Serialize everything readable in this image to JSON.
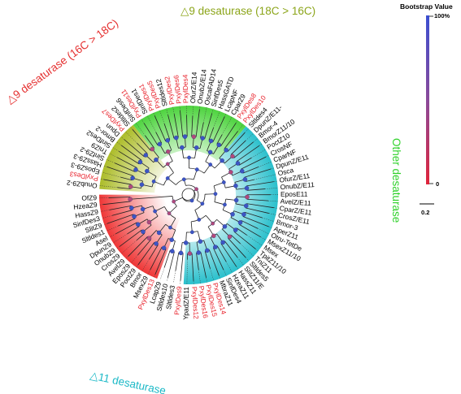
{
  "legend": {
    "title": "Bootstrap Value",
    "max_label": "100%",
    "min_label": "0",
    "color_high": "#3b4fd1",
    "color_low": "#e0243a"
  },
  "scale_bar": {
    "label": "0.2"
  },
  "clades": {
    "d9_16_18": {
      "label": "△9 desaturase (16C > 18C)",
      "color": "#e53030"
    },
    "d9_18_16": {
      "label": "△9 desaturase (18C > 16C)",
      "color": "#8ca51a"
    },
    "other": {
      "label": "Other desaturase",
      "color": "#2fd12a"
    },
    "d11": {
      "label": "△11 desaturase",
      "color": "#1cb9c7"
    }
  },
  "colors": {
    "highlight_text": "#e8202a",
    "normal_text": "#000000"
  },
  "leaves": [
    {
      "name": "OnubZ9-2",
      "clade": "d9_18_16",
      "highlight": false
    },
    {
      "name": "PxylDes3",
      "clade": "d9_18_16",
      "highlight": true
    },
    {
      "name": "EposZ9-3",
      "clade": "d9_18_16",
      "highlight": false
    },
    {
      "name": "HassZ9-3",
      "clade": "d9_18_16",
      "highlight": false
    },
    {
      "name": "SinfZ9-2",
      "clade": "d9_18_16",
      "highlight": false
    },
    {
      "name": "TniZ9",
      "clade": "d9_18_16",
      "highlight": false
    },
    {
      "name": "SinfDes2",
      "clade": "d9_18_16",
      "highlight": false
    },
    {
      "name": "Bmor-2",
      "clade": "d9_18_16",
      "highlight": false
    },
    {
      "name": "Dpun",
      "clade": "d9_18_16",
      "highlight": false
    },
    {
      "name": "PxylDes7",
      "clade": "d9_18_16",
      "highlight": true
    },
    {
      "name": "Sltldes2",
      "clade": "d9_18_16",
      "highlight": false
    },
    {
      "name": "SinfDes6",
      "clade": "other",
      "highlight": false
    },
    {
      "name": "PxylDes11",
      "clade": "other",
      "highlight": true
    },
    {
      "name": "SinfDes1",
      "clade": "other",
      "highlight": false
    },
    {
      "name": "PxylDes1",
      "clade": "other",
      "highlight": true
    },
    {
      "name": "PxylDes5",
      "clade": "other",
      "highlight": true
    },
    {
      "name": "Sltldes12",
      "clade": "other",
      "highlight": false
    },
    {
      "name": "PxylDes2",
      "clade": "other",
      "highlight": true
    },
    {
      "name": "PxylDes6",
      "clade": "other",
      "highlight": true
    },
    {
      "name": "PxylDes4",
      "clade": "other",
      "highlight": true
    },
    {
      "name": "OfurZ/E14",
      "clade": "other",
      "highlight": false
    },
    {
      "name": "OnubZ/E14",
      "clade": "other",
      "highlight": false
    },
    {
      "name": "OscaFAD14",
      "clade": "other",
      "highlight": false
    },
    {
      "name": "SinfDes5",
      "clade": "other",
      "highlight": false
    },
    {
      "name": "HassGATD",
      "clade": "other",
      "highlight": false
    },
    {
      "name": "LcapNF",
      "clade": "other",
      "highlight": false
    },
    {
      "name": "CparZ9",
      "clade": "other",
      "highlight": false
    },
    {
      "name": "PxylDes8",
      "clade": "other",
      "highlight": true
    },
    {
      "name": "PxylDes10",
      "clade": "other",
      "highlight": true
    },
    {
      "name": "Sltldes4",
      "clade": "d11",
      "highlight": false
    },
    {
      "name": "DpunZ/E11-",
      "clade": "d11",
      "highlight": false
    },
    {
      "name": "Bmor-4",
      "clade": "d11",
      "highlight": false
    },
    {
      "name": "BmorZ11/10",
      "clade": "d11",
      "highlight": false
    },
    {
      "name": "PoctZ10",
      "clade": "d11",
      "highlight": false
    },
    {
      "name": "CrosNF",
      "clade": "d11",
      "highlight": false
    },
    {
      "name": "CparNF",
      "clade": "d11",
      "highlight": false
    },
    {
      "name": "DpunZ/E11",
      "clade": "d11",
      "highlight": false
    },
    {
      "name": "Osca",
      "clade": "d11",
      "highlight": false
    },
    {
      "name": "OfurZ/E11",
      "clade": "d11",
      "highlight": false
    },
    {
      "name": "OnubZ/E11",
      "clade": "d11",
      "highlight": false
    },
    {
      "name": "EposE11",
      "clade": "d11",
      "highlight": false
    },
    {
      "name": "AvelZ/E11",
      "clade": "d11",
      "highlight": false
    },
    {
      "name": "CparZ/E11",
      "clade": "d11",
      "highlight": false
    },
    {
      "name": "CrosZ/E11",
      "clade": "d11",
      "highlight": false
    },
    {
      "name": "Bmor-3",
      "clade": "d11",
      "highlight": false
    },
    {
      "name": "AperZ11",
      "clade": "d11",
      "highlight": false
    },
    {
      "name": "Otru-TetDe",
      "clade": "d11",
      "highlight": false
    },
    {
      "name": "MsexZ11/10",
      "clade": "d11",
      "highlight": false
    },
    {
      "name": "Msex",
      "clade": "d11",
      "highlight": false
    },
    {
      "name": "TpitZ11/10",
      "clade": "d11",
      "highlight": false
    },
    {
      "name": "TniZ11",
      "clade": "d11",
      "highlight": false
    },
    {
      "name": "Sltldes5",
      "clade": "d11",
      "highlight": false
    },
    {
      "name": "SlitZ11/E",
      "clade": "d11",
      "highlight": false
    },
    {
      "name": "HassZ11",
      "clade": "d11",
      "highlight": false
    },
    {
      "name": "HzeaZ11",
      "clade": "d11",
      "highlight": false
    },
    {
      "name": "SinfDes4",
      "clade": "d11",
      "highlight": false
    },
    {
      "name": "MbraZ11",
      "clade": "d11",
      "highlight": false
    },
    {
      "name": "PxylDes14",
      "clade": "d11",
      "highlight": true
    },
    {
      "name": "PxylDes15",
      "clade": "d11",
      "highlight": true
    },
    {
      "name": "PxylDes16",
      "clade": "d11",
      "highlight": true
    },
    {
      "name": "PxylDes12",
      "clade": "d11",
      "highlight": true
    },
    {
      "name": "YpadZ/E11",
      "clade": "d11",
      "highlight": false
    },
    {
      "name": "PxylDes9",
      "clade": "none",
      "highlight": true
    },
    {
      "name": "Sltldes3",
      "clade": "none",
      "highlight": false
    },
    {
      "name": "Sltldes10",
      "clade": "none",
      "highlight": false
    },
    {
      "name": "LcapZ9",
      "clade": "none",
      "highlight": false
    },
    {
      "name": "PxylDes13",
      "clade": "d9_16_18",
      "highlight": true
    },
    {
      "name": "MsexZ9",
      "clade": "d9_16_18",
      "highlight": false
    },
    {
      "name": "Bmor",
      "clade": "d9_16_18",
      "highlight": false
    },
    {
      "name": "PoctZ9",
      "clade": "d9_16_18",
      "highlight": false
    },
    {
      "name": "EposZ9",
      "clade": "d9_16_18",
      "highlight": false
    },
    {
      "name": "AvelZ9",
      "clade": "d9_16_18",
      "highlight": false
    },
    {
      "name": "CrosZ9",
      "clade": "d9_16_18",
      "highlight": false
    },
    {
      "name": "OnubZ9",
      "clade": "d9_16_18",
      "highlight": false
    },
    {
      "name": "DpunZ9",
      "clade": "d9_16_18",
      "highlight": false
    },
    {
      "name": "Asel",
      "clade": "d9_16_18",
      "highlight": false
    },
    {
      "name": "Sltldes1",
      "clade": "d9_16_18",
      "highlight": false
    },
    {
      "name": "SlitZ9",
      "clade": "d9_16_18",
      "highlight": false
    },
    {
      "name": "SinfDes3",
      "clade": "d9_16_18",
      "highlight": false
    },
    {
      "name": "HassZ9",
      "clade": "d9_16_18",
      "highlight": false
    },
    {
      "name": "HzeaZ9",
      "clade": "d9_16_18",
      "highlight": false
    },
    {
      "name": "OfZ9",
      "clade": "d9_16_18",
      "highlight": false
    }
  ]
}
